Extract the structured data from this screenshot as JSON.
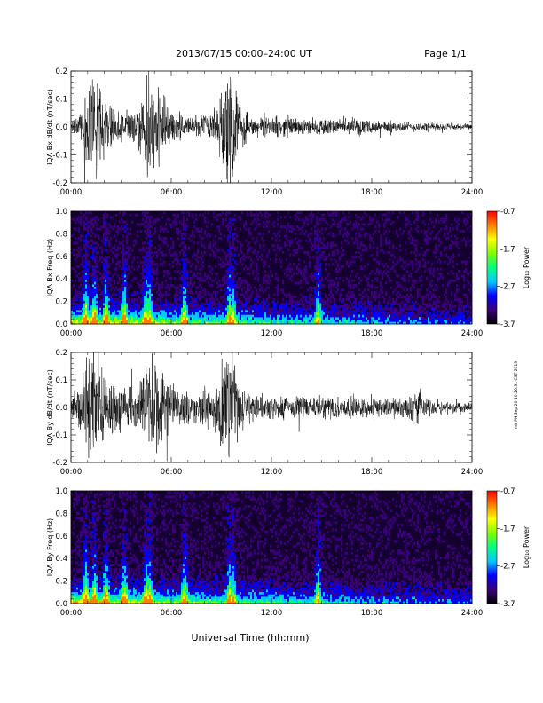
{
  "header": {
    "title": "2013/07/15  00:00–24:00 UT",
    "page": "Page 1/1"
  },
  "footer": {
    "xlabel": "Universal Time (hh:mm)",
    "side_note": "mk PH Sep 20 10:26:31 CST 2013"
  },
  "colorbar": {
    "label": "Log₁₀ Power",
    "tick_labels": [
      "-0.7",
      "-1.7",
      "-2.7",
      "-3.7"
    ],
    "range": [
      -3.7,
      -0.7
    ],
    "colors": [
      "#000000",
      "#3a007a",
      "#0000ff",
      "#00c8ff",
      "#00ff80",
      "#7dff00",
      "#ffff00",
      "#ff8000",
      "#ff0000"
    ]
  },
  "chart_data": [
    {
      "type": "line",
      "title": "",
      "xlabel": "",
      "ylabel": "IQA Bx dB/dt (nT/sec)",
      "x_tick_labels": [
        "00:00",
        "06:00",
        "12:00",
        "18:00",
        "24:00"
      ],
      "y_tick_labels": [
        "-0.2",
        "-0.1",
        "0.0",
        "0.1",
        "0.2"
      ],
      "xlim": [
        0,
        24
      ],
      "ylim": [
        -0.2,
        0.2
      ],
      "envelope": {
        "x": [
          0,
          0.2,
          0.4,
          0.7,
          1.0,
          1.3,
          1.6,
          2.0,
          2.5,
          3.0,
          3.5,
          4.0,
          4.3,
          4.6,
          4.9,
          5.2,
          5.5,
          6.0,
          6.5,
          7.0,
          7.5,
          8.0,
          8.5,
          9.0,
          9.4,
          9.7,
          10.0,
          10.5,
          11.0,
          12.0,
          13.0,
          14.0,
          15.0,
          16.0,
          17.0,
          18.0,
          19.0,
          20.0,
          21.0,
          22.0,
          23.0,
          24.0
        ],
        "amplitude": [
          0.02,
          0.04,
          0.06,
          0.1,
          0.22,
          0.22,
          0.2,
          0.13,
          0.08,
          0.06,
          0.07,
          0.09,
          0.14,
          0.22,
          0.22,
          0.2,
          0.1,
          0.07,
          0.06,
          0.05,
          0.05,
          0.06,
          0.08,
          0.14,
          0.22,
          0.22,
          0.12,
          0.06,
          0.04,
          0.04,
          0.04,
          0.035,
          0.035,
          0.03,
          0.03,
          0.025,
          0.025,
          0.02,
          0.02,
          0.015,
          0.015,
          0.01
        ]
      }
    },
    {
      "type": "heatmap",
      "title": "",
      "xlabel": "",
      "ylabel": "IQA Bx Freq (Hz)",
      "x_tick_labels": [
        "00:00",
        "06:00",
        "12:00",
        "18:00",
        "24:00"
      ],
      "y_tick_labels": [
        "0.0",
        "0.2",
        "0.4",
        "0.6",
        "0.8",
        "1.0"
      ],
      "xlim": [
        0,
        24
      ],
      "ylim": [
        0,
        1.0
      ],
      "zlim": [
        -3.7,
        -0.7
      ],
      "bright_bands_hr": [
        0.9,
        1.4,
        2.1,
        3.2,
        4.5,
        4.7,
        6.8,
        9.5,
        9.7,
        14.8
      ]
    },
    {
      "type": "line",
      "title": "",
      "xlabel": "",
      "ylabel": "IQA By dB/dt (nT/sec)",
      "x_tick_labels": [
        "00:00",
        "06:00",
        "12:00",
        "18:00",
        "24:00"
      ],
      "y_tick_labels": [
        "-0.2",
        "-0.1",
        "0.0",
        "0.1",
        "0.2"
      ],
      "xlim": [
        0,
        24
      ],
      "ylim": [
        -0.2,
        0.2
      ],
      "envelope": {
        "x": [
          0,
          0.2,
          0.4,
          0.7,
          1.0,
          1.3,
          1.6,
          2.0,
          2.5,
          3.0,
          3.5,
          4.0,
          4.3,
          4.6,
          4.9,
          5.2,
          5.5,
          6.0,
          6.5,
          7.0,
          7.5,
          8.0,
          8.5,
          9.0,
          9.4,
          9.7,
          10.0,
          10.5,
          11.0,
          12.0,
          13.0,
          14.0,
          15.0,
          16.0,
          17.0,
          18.0,
          19.0,
          20.0,
          20.8,
          21.0,
          22.0,
          23.0,
          24.0
        ],
        "amplitude": [
          0.04,
          0.06,
          0.1,
          0.16,
          0.22,
          0.22,
          0.2,
          0.15,
          0.12,
          0.08,
          0.09,
          0.12,
          0.16,
          0.22,
          0.22,
          0.2,
          0.14,
          0.1,
          0.08,
          0.07,
          0.07,
          0.08,
          0.1,
          0.15,
          0.22,
          0.22,
          0.15,
          0.08,
          0.06,
          0.06,
          0.05,
          0.05,
          0.05,
          0.045,
          0.045,
          0.04,
          0.04,
          0.04,
          0.08,
          0.04,
          0.03,
          0.025,
          0.02
        ]
      }
    },
    {
      "type": "heatmap",
      "title": "",
      "xlabel": "",
      "ylabel": "IQA By Freq (Hz)",
      "x_tick_labels": [
        "00:00",
        "06:00",
        "12:00",
        "18:00",
        "24:00"
      ],
      "y_tick_labels": [
        "0.0",
        "0.2",
        "0.4",
        "0.6",
        "0.8",
        "1.0"
      ],
      "xlim": [
        0,
        24
      ],
      "ylim": [
        0,
        1.0
      ],
      "zlim": [
        -3.7,
        -0.7
      ],
      "bright_bands_hr": [
        0.9,
        1.4,
        2.1,
        3.2,
        4.5,
        4.7,
        6.8,
        9.5,
        9.7,
        14.8
      ]
    }
  ]
}
